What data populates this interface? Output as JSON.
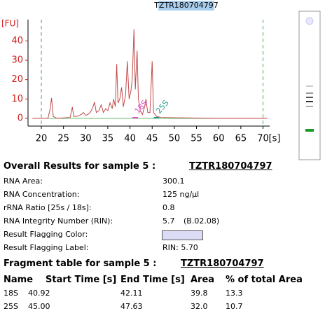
{
  "chart_data": {
    "type": "line",
    "title": "TZTR180704797",
    "y_label": "[FU]",
    "x_unit": "[s]",
    "x": [
      18.0,
      21.5,
      22.0,
      22.3,
      22.7,
      23.5,
      26.5,
      27.0,
      27.3,
      28.0,
      29.0,
      29.5,
      30.0,
      30.5,
      31.0,
      31.5,
      32.0,
      32.4,
      33.0,
      33.5,
      34.0,
      34.5,
      35.0,
      35.5,
      36.0,
      36.3,
      36.7,
      37.0,
      37.3,
      37.7,
      38.1,
      38.5,
      39.0,
      39.4,
      39.8,
      40.2,
      40.5,
      40.9,
      41.2,
      41.6,
      41.9,
      42.3,
      42.8,
      43.3,
      43.6,
      44.0,
      44.5,
      45.0,
      45.3,
      46.0,
      47.0,
      50.0,
      60.0,
      71.0
    ],
    "series": [
      {
        "color": "#c24a4a",
        "values": [
          0,
          0,
          5,
          10.5,
          1,
          0,
          0.5,
          5.8,
          1,
          1,
          2,
          3,
          1.5,
          2,
          3,
          5,
          8.4,
          3,
          4,
          7,
          3,
          5,
          4,
          8,
          5,
          10,
          6,
          28,
          8,
          10,
          16,
          6,
          12,
          29.5,
          10,
          14,
          20,
          46,
          15,
          35,
          10,
          4,
          2,
          6,
          10,
          3,
          3,
          29.5,
          3,
          1,
          0.5,
          0.3,
          0,
          0
        ]
      }
    ],
    "xlim": [
      17,
      71.5
    ],
    "ylim": [
      -4,
      51
    ],
    "xticks": [
      20,
      25,
      30,
      35,
      40,
      45,
      50,
      55,
      60,
      65,
      70
    ],
    "yticks": [
      0,
      10,
      20,
      30,
      40
    ],
    "vlines": [
      20,
      70
    ],
    "annotations": [
      {
        "text": "18S",
        "x": 41.5,
        "color": "#e050c8"
      },
      {
        "text": "25S",
        "x": 46.3,
        "color": "#2a9a8a"
      }
    ]
  },
  "results": {
    "heading": "Overall Results for sample 5 :",
    "sample": "TZTR180704797",
    "rows": [
      [
        "RNA Area:",
        "300.1"
      ],
      [
        "RNA Concentration:",
        "125 ng/µl"
      ],
      [
        "rRNA Ratio [25s / 18s]:",
        "0.8"
      ],
      [
        "RNA Integrity Number (RIN):",
        "5.7",
        "(B.02.08)"
      ],
      [
        "Result Flagging Color:"
      ],
      [
        "Result Flagging Label:",
        "RIN: 5.70"
      ]
    ],
    "flag_color": "#dcdcf7"
  },
  "fragment_table": {
    "heading": "Fragment table for sample 5 :",
    "sample": "TZTR180704797",
    "columns": [
      "Name",
      "Start Time [s]",
      "End Time [s]",
      "Area",
      "% of total Area"
    ],
    "rows": [
      [
        "18S",
        "40.92",
        "42.11",
        "39.8",
        "13.3"
      ],
      [
        "25S",
        "45.00",
        "47.63",
        "32.0",
        "10.7"
      ]
    ]
  }
}
